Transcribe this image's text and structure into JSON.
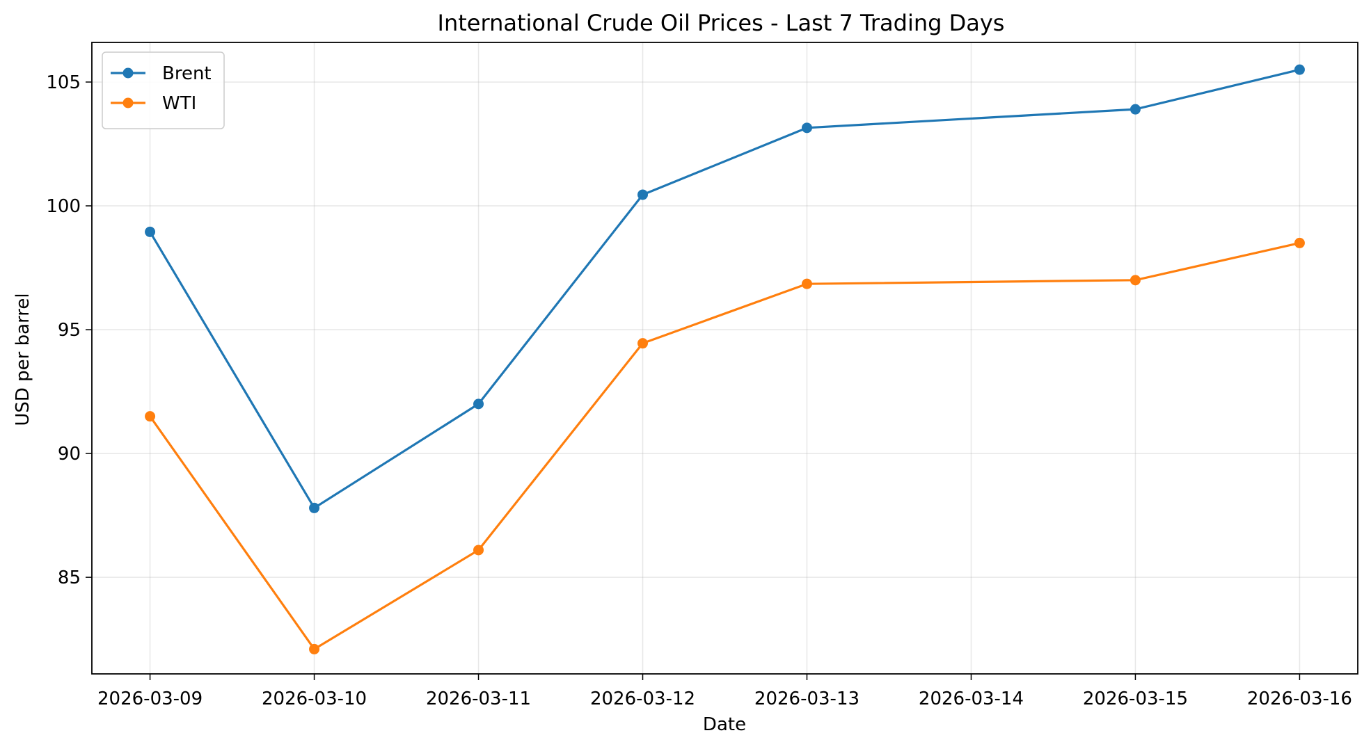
{
  "chart_data": {
    "type": "line",
    "title": "International Crude Oil Prices - Last 7 Trading Days",
    "xlabel": "Date",
    "ylabel": "USD per barrel",
    "x_ticks": [
      "2026-03-09",
      "2026-03-10",
      "2026-03-11",
      "2026-03-12",
      "2026-03-13",
      "2026-03-14",
      "2026-03-15",
      "2026-03-16"
    ],
    "y_ticks": [
      85,
      90,
      95,
      100,
      105
    ],
    "ylim": [
      81.1,
      106.6
    ],
    "xlim": [
      "2026-03-08 15:30",
      "2026-03-16 08:30"
    ],
    "grid": true,
    "legend_position": "top-left",
    "series": [
      {
        "name": "Brent",
        "color": "#1f77b4",
        "x": [
          "2026-03-09",
          "2026-03-10",
          "2026-03-11",
          "2026-03-12",
          "2026-03-13",
          "2026-03-15",
          "2026-03-16"
        ],
        "values": [
          98.95,
          87.8,
          92.0,
          100.45,
          103.15,
          103.9,
          105.5
        ]
      },
      {
        "name": "WTI",
        "color": "#ff7f0e",
        "x": [
          "2026-03-09",
          "2026-03-10",
          "2026-03-11",
          "2026-03-12",
          "2026-03-13",
          "2026-03-15",
          "2026-03-16"
        ],
        "values": [
          91.5,
          82.1,
          86.1,
          94.45,
          96.85,
          97.0,
          98.5
        ]
      }
    ]
  }
}
